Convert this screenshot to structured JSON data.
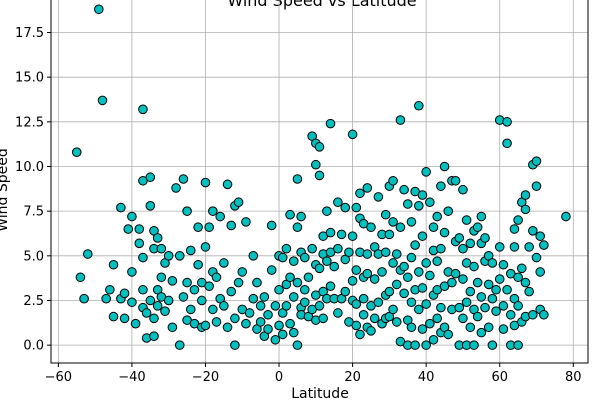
{
  "chart_data": {
    "type": "scatter",
    "title": "Wind Speed vs Latitude",
    "xlabel": "Latitude",
    "ylabel": "Wind Speed",
    "xlim": [
      -62,
      84
    ],
    "ylim": [
      -1,
      19.6
    ],
    "xticks": [
      -60,
      -40,
      -20,
      0,
      20,
      40,
      60,
      80
    ],
    "yticks": [
      0.0,
      2.5,
      5.0,
      7.5,
      10.0,
      12.5,
      15.0,
      17.5
    ],
    "xtick_labels": [
      "−60",
      "−40",
      "−20",
      "0",
      "20",
      "40",
      "60",
      "80"
    ],
    "ytick_labels": [
      "0.0",
      "2.5",
      "5.0",
      "7.5",
      "10.0",
      "12.5",
      "15.0",
      "17.5"
    ],
    "grid": true,
    "marker_color": "#00BFBF",
    "marker_edge": "#000000",
    "points": [
      [
        -55,
        10.8
      ],
      [
        -54,
        3.8
      ],
      [
        -53,
        2.6
      ],
      [
        -52,
        5.1
      ],
      [
        -49,
        18.8
      ],
      [
        -48,
        13.7
      ],
      [
        -47,
        2.6
      ],
      [
        -46,
        3.1
      ],
      [
        -45,
        4.5
      ],
      [
        -45,
        1.6
      ],
      [
        -43,
        7.7
      ],
      [
        -43,
        2.6
      ],
      [
        -42,
        1.5
      ],
      [
        -42,
        2.9
      ],
      [
        -41,
        6.5
      ],
      [
        -40,
        4.1
      ],
      [
        -40,
        7.2
      ],
      [
        -40,
        2.4
      ],
      [
        -39,
        1.2
      ],
      [
        -38,
        6.5
      ],
      [
        -38,
        5.7
      ],
      [
        -37,
        9.2
      ],
      [
        -37,
        13.2
      ],
      [
        -37,
        4.9
      ],
      [
        -37,
        3.1
      ],
      [
        -37,
        2.1
      ],
      [
        -36,
        0.4
      ],
      [
        -36,
        1.8
      ],
      [
        -35,
        2.5
      ],
      [
        -35,
        7.8
      ],
      [
        -35,
        9.4
      ],
      [
        -34,
        5.4
      ],
      [
        -34,
        6.4
      ],
      [
        -34,
        1.5
      ],
      [
        -34,
        0.5
      ],
      [
        -33,
        3.1
      ],
      [
        -33,
        2.2
      ],
      [
        -33,
        6.0
      ],
      [
        -32,
        5.4
      ],
      [
        -32,
        3.8
      ],
      [
        -32,
        2.7
      ],
      [
        -31,
        4.6
      ],
      [
        -31,
        1.9
      ],
      [
        -30,
        5.0
      ],
      [
        -30,
        2.5
      ],
      [
        -29,
        3.6
      ],
      [
        -29,
        1.0
      ],
      [
        -28,
        8.8
      ],
      [
        -27,
        5.0
      ],
      [
        -27,
        0.0
      ],
      [
        -26,
        9.3
      ],
      [
        -26,
        2.7
      ],
      [
        -25,
        1.4
      ],
      [
        -25,
        7.5
      ],
      [
        -25,
        3.5
      ],
      [
        -24,
        5.3
      ],
      [
        -24,
        2.0
      ],
      [
        -23,
        1.2
      ],
      [
        -23,
        3.1
      ],
      [
        -22,
        4.5
      ],
      [
        -22,
        6.6
      ],
      [
        -21,
        2.5
      ],
      [
        -21,
        1.0
      ],
      [
        -21,
        3.5
      ],
      [
        -20,
        5.5
      ],
      [
        -20,
        9.1
      ],
      [
        -20,
        1.1
      ],
      [
        -19,
        6.6
      ],
      [
        -19,
        3.3
      ],
      [
        -18,
        4.1
      ],
      [
        -18,
        2.0
      ],
      [
        -18,
        7.5
      ],
      [
        -17,
        1.3
      ],
      [
        -17,
        3.8
      ],
      [
        -16,
        7.2
      ],
      [
        -16,
        2.6
      ],
      [
        -15,
        4.6
      ],
      [
        -15,
        2.2
      ],
      [
        -14,
        1.0
      ],
      [
        -14,
        9.0
      ],
      [
        -13,
        6.7
      ],
      [
        -13,
        3.0
      ],
      [
        -12,
        1.5
      ],
      [
        -12,
        0.0
      ],
      [
        -12,
        7.8
      ],
      [
        -11,
        3.5
      ],
      [
        -11,
        8.0
      ],
      [
        -10,
        4.1
      ],
      [
        -10,
        2.0
      ],
      [
        -9,
        6.9
      ],
      [
        -9,
        1.2
      ],
      [
        -8,
        1.8
      ],
      [
        -7,
        5.0
      ],
      [
        -7,
        2.6
      ],
      [
        -6,
        3.5
      ],
      [
        -6,
        0.9
      ],
      [
        -5,
        2.2
      ],
      [
        -5,
        1.3
      ],
      [
        -4,
        0.5
      ],
      [
        -4,
        2.7
      ],
      [
        -3,
        1.7
      ],
      [
        -3,
        0.9
      ],
      [
        -2,
        4.2
      ],
      [
        -2,
        6.7
      ],
      [
        -1,
        2.2
      ],
      [
        -1,
        0.3
      ],
      [
        0,
        5.0
      ],
      [
        0,
        1.1
      ],
      [
        0,
        3.1
      ],
      [
        1,
        1.8
      ],
      [
        1,
        4.9
      ],
      [
        1,
        0.6
      ],
      [
        2,
        2.2
      ],
      [
        2,
        3.4
      ],
      [
        2,
        5.4
      ],
      [
        3,
        3.8
      ],
      [
        3,
        1.2
      ],
      [
        3,
        7.3
      ],
      [
        4,
        2.7
      ],
      [
        4,
        4.7
      ],
      [
        4,
        0.7
      ],
      [
        5,
        6.6
      ],
      [
        5,
        3.5
      ],
      [
        5,
        9.3
      ],
      [
        5,
        0.0
      ],
      [
        6,
        2.1
      ],
      [
        6,
        5.2
      ],
      [
        6,
        7.2
      ],
      [
        6,
        1.7
      ],
      [
        7,
        3.1
      ],
      [
        7,
        4.9
      ],
      [
        7,
        2.4
      ],
      [
        8,
        1.6
      ],
      [
        8,
        3.8
      ],
      [
        9,
        11.7
      ],
      [
        9,
        2.0
      ],
      [
        9,
        5.4
      ],
      [
        10,
        4.5
      ],
      [
        10,
        11.3
      ],
      [
        10,
        2.8
      ],
      [
        10,
        10.1
      ],
      [
        10,
        1.4
      ],
      [
        11,
        4.3
      ],
      [
        11,
        11.1
      ],
      [
        11,
        9.5
      ],
      [
        11,
        2.2
      ],
      [
        12,
        6.1
      ],
      [
        12,
        3.0
      ],
      [
        12,
        5.1
      ],
      [
        12,
        1.5
      ],
      [
        13,
        4.7
      ],
      [
        13,
        2.6
      ],
      [
        13,
        7.5
      ],
      [
        14,
        12.4
      ],
      [
        14,
        5.2
      ],
      [
        14,
        3.3
      ],
      [
        14,
        6.3
      ],
      [
        15,
        4.4
      ],
      [
        15,
        2.6
      ],
      [
        16,
        8.0
      ],
      [
        16,
        1.8
      ],
      [
        16,
        5.4
      ],
      [
        17,
        6.2
      ],
      [
        17,
        2.6
      ],
      [
        18,
        4.8
      ],
      [
        18,
        7.7
      ],
      [
        18,
        3.0
      ],
      [
        19,
        1.3
      ],
      [
        19,
        5.2
      ],
      [
        20,
        2.5
      ],
      [
        20,
        11.8
      ],
      [
        20,
        6.1
      ],
      [
        20,
        3.6
      ],
      [
        21,
        4.2
      ],
      [
        21,
        7.7
      ],
      [
        21,
        1.1
      ],
      [
        21,
        2.3
      ],
      [
        22,
        5.2
      ],
      [
        22,
        8.5
      ],
      [
        22,
        0.6
      ],
      [
        22,
        7.1
      ],
      [
        23,
        3.8
      ],
      [
        23,
        6.8
      ],
      [
        23,
        1.7
      ],
      [
        23,
        2.6
      ],
      [
        24,
        8.8
      ],
      [
        24,
        5.1
      ],
      [
        24,
        1.0
      ],
      [
        24,
        4.0
      ],
      [
        25,
        2.2
      ],
      [
        25,
        6.6
      ],
      [
        25,
        0.8
      ],
      [
        26,
        5.5
      ],
      [
        26,
        3.7
      ],
      [
        26,
        1.5
      ],
      [
        27,
        5.1
      ],
      [
        27,
        2.4
      ],
      [
        27,
        8.3
      ],
      [
        28,
        6.2
      ],
      [
        28,
        4.1
      ],
      [
        28,
        1.2
      ],
      [
        29,
        7.3
      ],
      [
        29,
        2.8
      ],
      [
        29,
        5.2
      ],
      [
        29,
        1.5
      ],
      [
        30,
        8.9
      ],
      [
        30,
        3.0
      ],
      [
        30,
        6.2
      ],
      [
        30,
        1.6
      ],
      [
        31,
        9.2
      ],
      [
        31,
        4.6
      ],
      [
        31,
        6.9
      ],
      [
        31,
        2.0
      ],
      [
        32,
        5.1
      ],
      [
        32,
        1.3
      ],
      [
        32,
        3.4
      ],
      [
        33,
        12.6
      ],
      [
        33,
        6.6
      ],
      [
        33,
        4.2
      ],
      [
        33,
        0.2
      ],
      [
        34,
        8.7
      ],
      [
        34,
        2.9
      ],
      [
        34,
        4.4
      ],
      [
        35,
        7.9
      ],
      [
        35,
        1.4
      ],
      [
        35,
        3.8
      ],
      [
        35,
        0.0
      ],
      [
        36,
        6.9
      ],
      [
        36,
        2.4
      ],
      [
        36,
        4.9
      ],
      [
        36,
        1.0
      ],
      [
        37,
        8.6
      ],
      [
        37,
        3.1
      ],
      [
        37,
        5.6
      ],
      [
        37,
        0.0
      ],
      [
        38,
        7.8
      ],
      [
        38,
        2.0
      ],
      [
        38,
        13.4
      ],
      [
        38,
        4.1
      ],
      [
        39,
        8.4
      ],
      [
        39,
        3.2
      ],
      [
        39,
        0.9
      ],
      [
        39,
        6.1
      ],
      [
        40,
        4.6
      ],
      [
        40,
        9.7
      ],
      [
        40,
        2.3
      ],
      [
        40,
        0.0
      ],
      [
        41,
        8.0
      ],
      [
        41,
        3.9
      ],
      [
        41,
        1.2
      ],
      [
        42,
        6.6
      ],
      [
        42,
        5.3
      ],
      [
        42,
        2.8
      ],
      [
        42,
        0.3
      ],
      [
        43,
        7.2
      ],
      [
        43,
        4.7
      ],
      [
        43,
        1.5
      ],
      [
        43,
        3.1
      ],
      [
        44,
        8.9
      ],
      [
        44,
        5.4
      ],
      [
        44,
        2.1
      ],
      [
        44,
        0.7
      ],
      [
        45,
        10.0
      ],
      [
        45,
        6.3
      ],
      [
        45,
        3.3
      ],
      [
        45,
        1.0
      ],
      [
        46,
        7.5
      ],
      [
        46,
        4.1
      ],
      [
        46,
        0.6
      ],
      [
        47,
        9.2
      ],
      [
        47,
        3.5
      ],
      [
        47,
        2.0
      ],
      [
        48,
        4.0
      ],
      [
        48,
        9.2
      ],
      [
        48,
        5.8
      ],
      [
        49,
        2.1
      ],
      [
        49,
        0.0
      ],
      [
        49,
        6.0
      ],
      [
        50,
        3.7
      ],
      [
        50,
        8.7
      ],
      [
        50,
        1.5
      ],
      [
        50,
        5.4
      ],
      [
        51,
        4.6
      ],
      [
        51,
        2.4
      ],
      [
        51,
        0.0
      ],
      [
        51,
        7.0
      ],
      [
        52,
        5.7
      ],
      [
        52,
        3.0
      ],
      [
        52,
        1.0
      ],
      [
        53,
        6.4
      ],
      [
        53,
        4.4
      ],
      [
        53,
        2.0
      ],
      [
        53,
        0.0
      ],
      [
        54,
        6.6
      ],
      [
        54,
        3.5
      ],
      [
        54,
        1.6
      ],
      [
        55,
        5.7
      ],
      [
        55,
        2.7
      ],
      [
        55,
        0.7
      ],
      [
        55,
        7.2
      ],
      [
        56,
        4.7
      ],
      [
        56,
        2.1
      ],
      [
        56,
        6.0
      ],
      [
        57,
        3.4
      ],
      [
        57,
        1.0
      ],
      [
        57,
        5.0
      ],
      [
        58,
        2.6
      ],
      [
        58,
        4.6
      ],
      [
        58,
        0.0
      ],
      [
        59,
        3.1
      ],
      [
        59,
        1.9
      ],
      [
        60,
        5.5
      ],
      [
        60,
        12.6
      ],
      [
        60,
        3.7
      ],
      [
        61,
        2.2
      ],
      [
        61,
        0.9
      ],
      [
        61,
        4.5
      ],
      [
        62,
        11.3
      ],
      [
        62,
        3.1
      ],
      [
        62,
        12.5
      ],
      [
        63,
        4.0
      ],
      [
        63,
        1.7
      ],
      [
        63,
        0.0
      ],
      [
        64,
        5.5
      ],
      [
        64,
        2.6
      ],
      [
        64,
        6.5
      ],
      [
        64,
        1.1
      ],
      [
        65,
        3.8
      ],
      [
        65,
        7.0
      ],
      [
        65,
        0.0
      ],
      [
        65,
        2.2
      ],
      [
        66,
        4.3
      ],
      [
        66,
        8.0
      ],
      [
        66,
        1.3
      ],
      [
        67,
        3.5
      ],
      [
        67,
        8.4
      ],
      [
        67,
        7.6
      ],
      [
        67,
        1.6
      ],
      [
        68,
        5.5
      ],
      [
        68,
        3.0
      ],
      [
        69,
        10.1
      ],
      [
        69,
        1.7
      ],
      [
        69,
        6.4
      ],
      [
        70,
        8.9
      ],
      [
        70,
        4.9
      ],
      [
        70,
        10.3
      ],
      [
        71,
        6.1
      ],
      [
        71,
        2.0
      ],
      [
        71,
        4.1
      ],
      [
        72,
        5.6
      ],
      [
        72,
        1.7
      ],
      [
        78,
        7.2
      ]
    ]
  }
}
